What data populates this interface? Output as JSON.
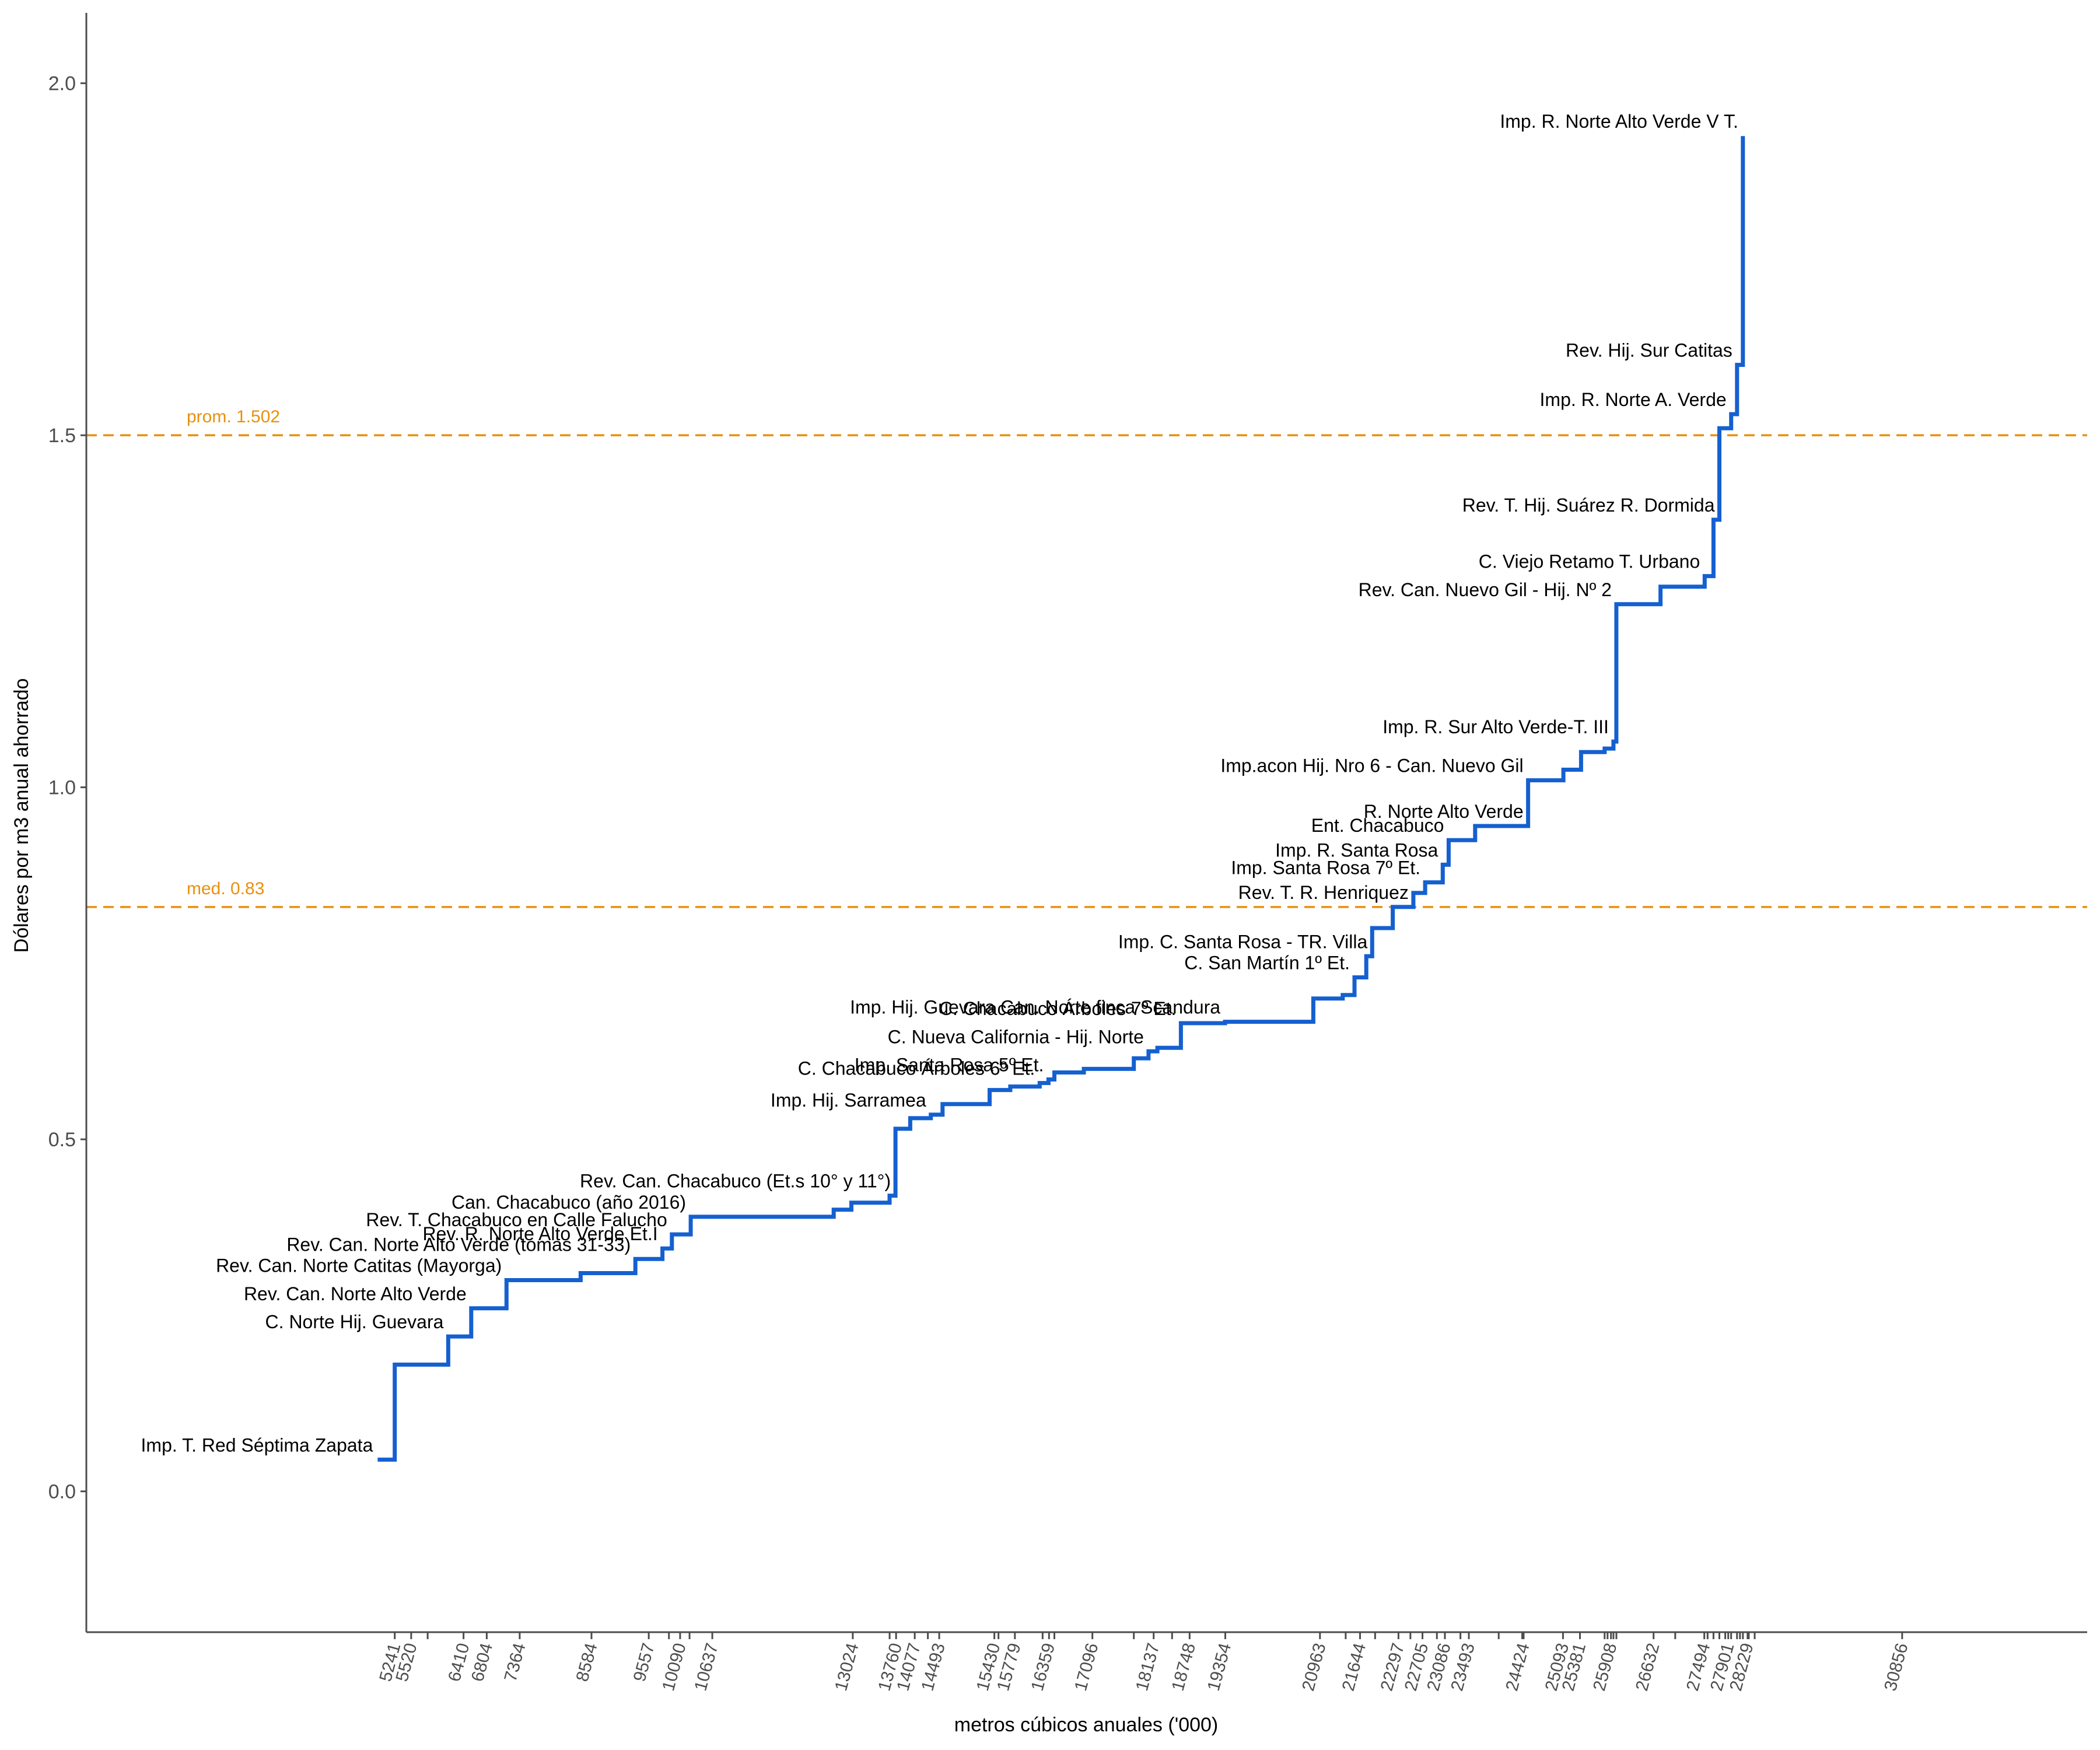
{
  "colors": {
    "line": "#1560d0",
    "reference": "#e8900e",
    "axis": "#4d4d4d",
    "text": "#000000"
  },
  "chart_data": {
    "type": "line",
    "step": true,
    "xlabel": "metros cúbicos anuales ('000)",
    "ylabel": "Dólares por m3 anual ahorrado",
    "xlim": [
      0,
      34000
    ],
    "ylim": [
      -0.2,
      2.1
    ],
    "y_ticks": [
      0.0,
      0.5,
      1.0,
      1.5,
      2.0
    ],
    "y_tick_labels": [
      "0.0",
      "0.5",
      "1.0",
      "1.5",
      "2.0"
    ],
    "grid": false,
    "x_ticks": [
      {
        "value": 5241,
        "label": "5241"
      },
      {
        "value": 5520,
        "label": "5520"
      },
      {
        "value": 6410,
        "label": "6410"
      },
      {
        "value": 6804,
        "label": "6804"
      },
      {
        "value": 7364,
        "label": "7364"
      },
      {
        "value": 8584,
        "label": "8584"
      },
      {
        "value": 9557,
        "label": "9557"
      },
      {
        "value": 10090,
        "label": "10090"
      },
      {
        "value": 10637,
        "label": "10637"
      },
      {
        "value": 13024,
        "label": "13024"
      },
      {
        "value": 13760,
        "label": "13760"
      },
      {
        "value": 14077,
        "label": "14077"
      },
      {
        "value": 14493,
        "label": "14493"
      },
      {
        "value": 15430,
        "label": "15430"
      },
      {
        "value": 15779,
        "label": "15779"
      },
      {
        "value": 16359,
        "label": "16359"
      },
      {
        "value": 17096,
        "label": "17096"
      },
      {
        "value": 18137,
        "label": "18137"
      },
      {
        "value": 18748,
        "label": "18748"
      },
      {
        "value": 19354,
        "label": "19354"
      },
      {
        "value": 20963,
        "label": "20963"
      },
      {
        "value": 21644,
        "label": "21644"
      },
      {
        "value": 22297,
        "label": "22297"
      },
      {
        "value": 22705,
        "label": "22705"
      },
      {
        "value": 23086,
        "label": "23086"
      },
      {
        "value": 23493,
        "label": "23493"
      },
      {
        "value": 24424,
        "label": "24424"
      },
      {
        "value": 25093,
        "label": "25093"
      },
      {
        "value": 25381,
        "label": "25381"
      },
      {
        "value": 25908,
        "label": "25908"
      },
      {
        "value": 26632,
        "label": "26632"
      },
      {
        "value": 27494,
        "label": "27494"
      },
      {
        "value": 27901,
        "label": "27901"
      },
      {
        "value": 28229,
        "label": "28229"
      },
      {
        "value": 30856,
        "label": "30856"
      }
    ],
    "x_minor_ticks": [
      5800,
      9900,
      10250,
      13650,
      14300,
      15500,
      16250,
      16450,
      17800,
      18450,
      21400,
      21900,
      22500,
      22950,
      23350,
      24000,
      24400,
      25800,
      25850,
      25950,
      26000,
      27000,
      27550,
      27650,
      27750,
      27850,
      27950,
      28050,
      28100,
      28150,
      28250,
      28350
    ],
    "reference_lines": [
      {
        "y": 1.5,
        "label": "prom. 1.502"
      },
      {
        "y": 0.83,
        "label": "med. 0.83"
      }
    ],
    "steps": [
      {
        "x0": 4950,
        "x1": 5241,
        "y": 0.045
      },
      {
        "x0": 5241,
        "x1": 6150,
        "y": 0.18
      },
      {
        "x0": 6150,
        "x1": 6540,
        "y": 0.22
      },
      {
        "x0": 6540,
        "x1": 7140,
        "y": 0.26
      },
      {
        "x0": 7140,
        "x1": 8400,
        "y": 0.3
      },
      {
        "x0": 8400,
        "x1": 9330,
        "y": 0.31
      },
      {
        "x0": 9330,
        "x1": 9790,
        "y": 0.33
      },
      {
        "x0": 9790,
        "x1": 9950,
        "y": 0.345
      },
      {
        "x0": 9950,
        "x1": 10270,
        "y": 0.365
      },
      {
        "x0": 10270,
        "x1": 12700,
        "y": 0.39
      },
      {
        "x0": 12700,
        "x1": 13000,
        "y": 0.4
      },
      {
        "x0": 13000,
        "x1": 13650,
        "y": 0.41
      },
      {
        "x0": 13650,
        "x1": 13750,
        "y": 0.42
      },
      {
        "x0": 13750,
        "x1": 14000,
        "y": 0.515
      },
      {
        "x0": 14000,
        "x1": 14350,
        "y": 0.53
      },
      {
        "x0": 14350,
        "x1": 14550,
        "y": 0.535
      },
      {
        "x0": 14550,
        "x1": 15350,
        "y": 0.55
      },
      {
        "x0": 15350,
        "x1": 15700,
        "y": 0.57
      },
      {
        "x0": 15700,
        "x1": 16200,
        "y": 0.575
      },
      {
        "x0": 16200,
        "x1": 16350,
        "y": 0.58
      },
      {
        "x0": 16350,
        "x1": 16450,
        "y": 0.585
      },
      {
        "x0": 16450,
        "x1": 16950,
        "y": 0.595
      },
      {
        "x0": 16950,
        "x1": 17800,
        "y": 0.6
      },
      {
        "x0": 17800,
        "x1": 18050,
        "y": 0.615
      },
      {
        "x0": 18050,
        "x1": 18200,
        "y": 0.625
      },
      {
        "x0": 18200,
        "x1": 18600,
        "y": 0.63
      },
      {
        "x0": 18600,
        "x1": 19350,
        "y": 0.665
      },
      {
        "x0": 19350,
        "x1": 20850,
        "y": 0.667
      },
      {
        "x0": 20850,
        "x1": 21350,
        "y": 0.7
      },
      {
        "x0": 21350,
        "x1": 21550,
        "y": 0.705
      },
      {
        "x0": 21550,
        "x1": 21750,
        "y": 0.73
      },
      {
        "x0": 21750,
        "x1": 21850,
        "y": 0.76
      },
      {
        "x0": 21850,
        "x1": 22200,
        "y": 0.8
      },
      {
        "x0": 22200,
        "x1": 22550,
        "y": 0.83
      },
      {
        "x0": 22550,
        "x1": 22750,
        "y": 0.85
      },
      {
        "x0": 22750,
        "x1": 23050,
        "y": 0.865
      },
      {
        "x0": 23050,
        "x1": 23150,
        "y": 0.89
      },
      {
        "x0": 23150,
        "x1": 23600,
        "y": 0.925
      },
      {
        "x0": 23600,
        "x1": 24500,
        "y": 0.945
      },
      {
        "x0": 24500,
        "x1": 25100,
        "y": 1.01
      },
      {
        "x0": 25100,
        "x1": 25400,
        "y": 1.025
      },
      {
        "x0": 25400,
        "x1": 25800,
        "y": 1.05
      },
      {
        "x0": 25800,
        "x1": 25950,
        "y": 1.055
      },
      {
        "x0": 25950,
        "x1": 26000,
        "y": 1.065
      },
      {
        "x0": 26000,
        "x1": 26750,
        "y": 1.26
      },
      {
        "x0": 26750,
        "x1": 27500,
        "y": 1.285
      },
      {
        "x0": 27500,
        "x1": 27650,
        "y": 1.3
      },
      {
        "x0": 27650,
        "x1": 27750,
        "y": 1.38
      },
      {
        "x0": 27750,
        "x1": 27950,
        "y": 1.51
      },
      {
        "x0": 27950,
        "x1": 28050,
        "y": 1.53
      },
      {
        "x0": 28050,
        "x1": 28150,
        "y": 1.6
      },
      {
        "x0": 28150,
        "x1": 28150,
        "y": 1.925
      }
    ],
    "annotations": [
      {
        "text": "Imp. R. Norte Alto Verde V T.",
        "x": 28150,
        "y": 1.925
      },
      {
        "text": "Rev. Hij. Sur Catitas",
        "x": 28050,
        "y": 1.6
      },
      {
        "text": "Imp. R. Norte A. Verde",
        "x": 27950,
        "y": 1.53
      },
      {
        "text": "Rev. T. Hij. Suárez R. Dormida",
        "x": 27750,
        "y": 1.38
      },
      {
        "text": "C. Viejo Retamo T. Urbano",
        "x": 27500,
        "y": 1.3
      },
      {
        "text": "Rev. Can. Nuevo Gil - Hij. Nº 2",
        "x": 26000,
        "y": 1.26
      },
      {
        "text": "Imp. R. Sur Alto Verde-T. III",
        "x": 25950,
        "y": 1.065
      },
      {
        "text": "Imp.acon Hij. Nro 6 - Can. Nuevo Gil",
        "x": 24500,
        "y": 1.01
      },
      {
        "text": "R. Norte Alto Verde",
        "x": 24500,
        "y": 0.945
      },
      {
        "text": "Ent. Chacabuco",
        "x": 23150,
        "y": 0.925
      },
      {
        "text": "Imp. R. Santa Rosa",
        "x": 23050,
        "y": 0.89
      },
      {
        "text": "Imp. Santa Rosa 7º Et.",
        "x": 22750,
        "y": 0.865
      },
      {
        "text": "Rev. T. R. Henriquez",
        "x": 22550,
        "y": 0.83
      },
      {
        "text": "Imp. C. Santa Rosa - TR. Villa",
        "x": 21850,
        "y": 0.76
      },
      {
        "text": "C. San Martín 1º Et.",
        "x": 21550,
        "y": 0.73
      },
      {
        "text": "Imp. Hij. Guevara Can. Norte finca Scandura",
        "x": 19350,
        "y": 0.667
      },
      {
        "text": "C. Chacabuco Árboles 7º Et.",
        "x": 18600,
        "y": 0.665
      },
      {
        "text": "C. Nueva California - Hij. Norte",
        "x": 18050,
        "y": 0.625
      },
      {
        "text": "Imp. Santa Rosa 5º Et.",
        "x": 16350,
        "y": 0.585
      },
      {
        "text": "C. Chacabuco Árboles 6º Et.",
        "x": 16200,
        "y": 0.58
      },
      {
        "text": "Imp. Hij. Sarramea",
        "x": 14350,
        "y": 0.535
      },
      {
        "text": "Rev. Can. Chacabuco (Et.s 10° y 11°)",
        "x": 13750,
        "y": 0.42
      },
      {
        "text": "Can. Chacabuco (año 2016)",
        "x": 10270,
        "y": 0.39
      },
      {
        "text": "Rev. T. Chacabuco en Calle Falucho",
        "x": 9950,
        "y": 0.365
      },
      {
        "text": "Rev. R. Norte Alto Verde Et.I",
        "x": 9790,
        "y": 0.345
      },
      {
        "text": "Rev. Can. Norte Alto Verde (tomas 31-33)",
        "x": 9330,
        "y": 0.33
      },
      {
        "text": "Rev. Can. Norte Catitas (Mayorga)",
        "x": 7140,
        "y": 0.3
      },
      {
        "text": "Rev. Can. Norte Alto Verde",
        "x": 6540,
        "y": 0.26
      },
      {
        "text": "C. Norte Hij. Guevara",
        "x": 6150,
        "y": 0.22
      },
      {
        "text": "Imp. T. Red Séptima Zapata",
        "x": 4950,
        "y": 0.045
      }
    ]
  }
}
